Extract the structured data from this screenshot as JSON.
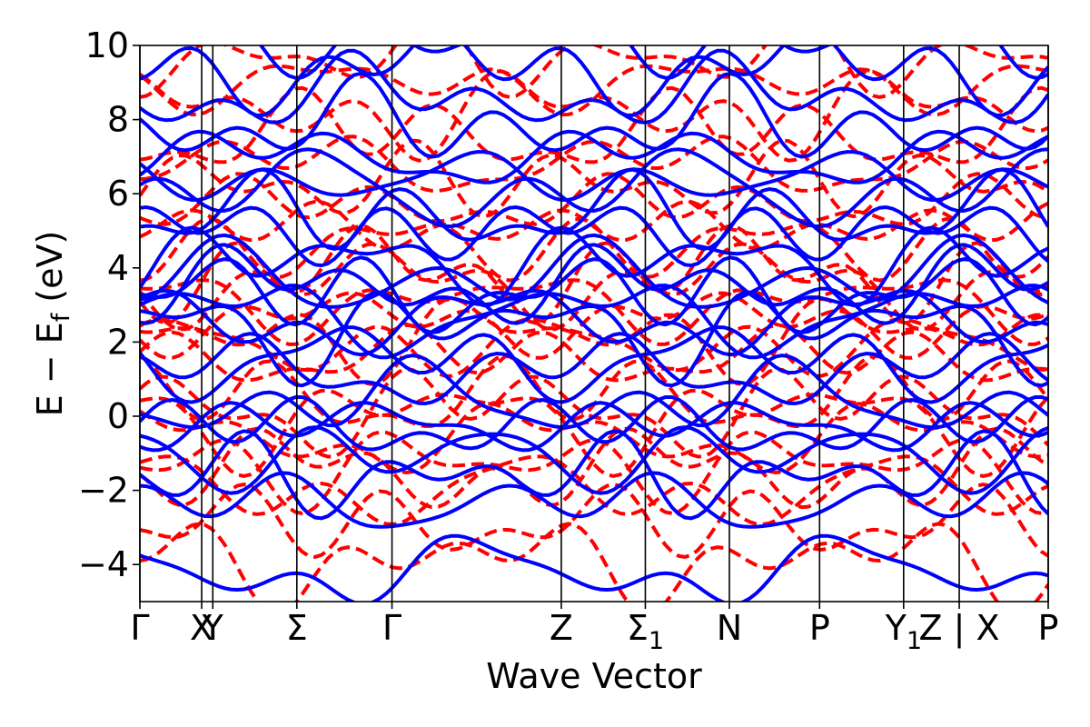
{
  "chart_data": {
    "type": "line",
    "title": "",
    "xlabel": "Wave Vector",
    "ylabel": "E − E_f (eV)",
    "ylabel_main": "E − E",
    "ylabel_sub": "f",
    "ylabel_unit": " (eV)",
    "ylim": [
      -5,
      10
    ],
    "yticks": [
      -4,
      -2,
      0,
      2,
      4,
      6,
      8,
      10
    ],
    "ytick_labels": [
      "−4",
      "−2",
      "0",
      "2",
      "4",
      "6",
      "8",
      "10"
    ],
    "xlim": [
      0,
      6.72
    ],
    "grid": false,
    "legend": "none",
    "kpoints": [
      {
        "label": "Γ",
        "x": 0.0
      },
      {
        "label": "X",
        "x": 0.5
      },
      {
        "label": "Y",
        "x": 0.59
      },
      {
        "label": "Σ",
        "x": 1.27
      },
      {
        "label": "Γ",
        "x": 2.04
      },
      {
        "label": "Z",
        "x": 3.41
      },
      {
        "label": "Σ",
        "sub": "1",
        "x": 4.09
      },
      {
        "label": "N",
        "x": 4.77
      },
      {
        "label": "P",
        "x": 5.5
      },
      {
        "label": "Y",
        "sub": "1",
        "x": 6.18
      },
      {
        "label": "Z | X",
        "x": 6.63
      },
      {
        "label": "P",
        "x": 7.35
      }
    ],
    "series": [
      {
        "style": "solid",
        "color": "#0000ff"
      },
      {
        "style": "dashed",
        "color": "#ff0000"
      }
    ],
    "colors": {
      "spin_up": "#0000ff",
      "spin_down": "#ff0000",
      "kpath_lines": "#000000"
    }
  }
}
